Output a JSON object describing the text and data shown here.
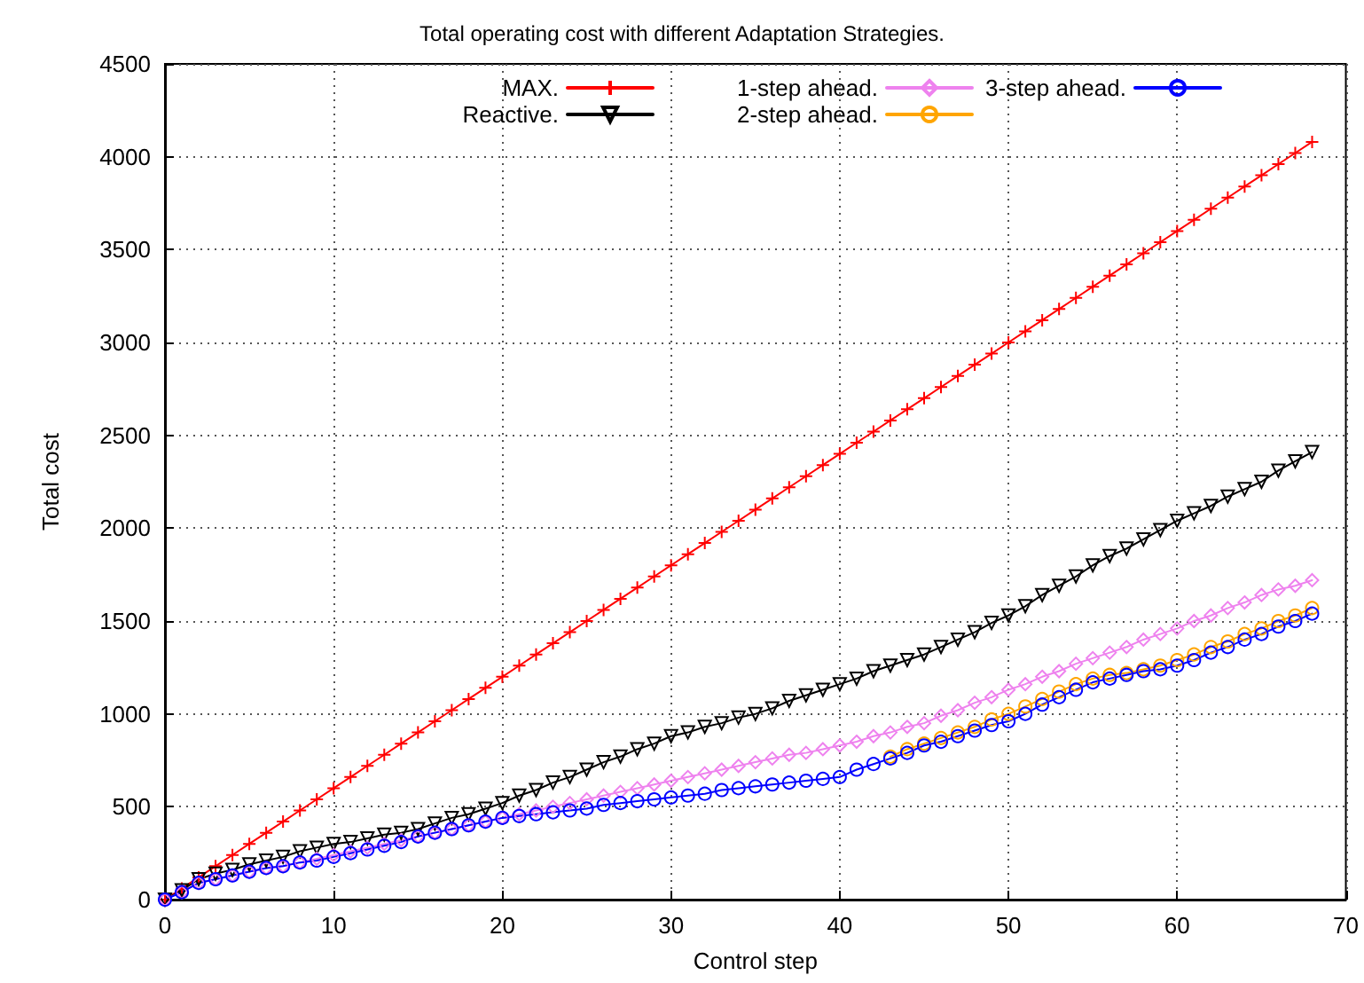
{
  "chart_data": {
    "type": "line",
    "title": "Total operating cost with different Adaptation Strategies.",
    "xlabel": "Control step",
    "ylabel": "Total cost",
    "x": [
      0,
      1,
      2,
      3,
      4,
      5,
      6,
      7,
      8,
      9,
      10,
      11,
      12,
      13,
      14,
      15,
      16,
      17,
      18,
      19,
      20,
      21,
      22,
      23,
      24,
      25,
      26,
      27,
      28,
      29,
      30,
      31,
      32,
      33,
      34,
      35,
      36,
      37,
      38,
      39,
      40,
      41,
      42,
      43,
      44,
      45,
      46,
      47,
      48,
      49,
      50,
      51,
      52,
      53,
      54,
      55,
      56,
      57,
      58,
      59,
      60,
      61,
      62,
      63,
      64,
      65,
      66,
      67,
      68
    ],
    "xlim": [
      0,
      70
    ],
    "xticks": [
      0,
      10,
      20,
      30,
      40,
      50,
      60,
      70
    ],
    "ylim": [
      0,
      4500
    ],
    "yticks": [
      0,
      500,
      1000,
      1500,
      2000,
      2500,
      3000,
      3500,
      4000,
      4500
    ],
    "grid": true,
    "legend": "top right",
    "line_style": "solid",
    "series": [
      {
        "name": "MAX.",
        "color": "#ff0000",
        "marker": "cross",
        "values": [
          0,
          60,
          120,
          180,
          240,
          300,
          360,
          420,
          480,
          540,
          600,
          660,
          720,
          780,
          840,
          900,
          960,
          1020,
          1080,
          1140,
          1200,
          1260,
          1320,
          1380,
          1440,
          1500,
          1560,
          1620,
          1680,
          1740,
          1800,
          1860,
          1920,
          1980,
          2040,
          2100,
          2160,
          2220,
          2280,
          2340,
          2400,
          2460,
          2520,
          2580,
          2640,
          2700,
          2760,
          2820,
          2880,
          2940,
          3000,
          3060,
          3120,
          3180,
          3240,
          3300,
          3360,
          3420,
          3480,
          3540,
          3600,
          3660,
          3720,
          3780,
          3840,
          3900,
          3960,
          4020,
          4080
        ]
      },
      {
        "name": "Reactive.",
        "color": "#000000",
        "marker": "triangle",
        "values": [
          0,
          50,
          110,
          140,
          160,
          190,
          210,
          230,
          260,
          280,
          300,
          310,
          330,
          350,
          360,
          380,
          410,
          440,
          460,
          490,
          520,
          560,
          590,
          630,
          660,
          700,
          740,
          770,
          810,
          840,
          880,
          900,
          930,
          950,
          980,
          1000,
          1030,
          1070,
          1100,
          1130,
          1160,
          1190,
          1230,
          1260,
          1290,
          1320,
          1360,
          1400,
          1440,
          1490,
          1530,
          1580,
          1640,
          1690,
          1740,
          1800,
          1850,
          1890,
          1940,
          1990,
          2040,
          2080,
          2120,
          2170,
          2210,
          2250,
          2310,
          2360,
          2410
        ]
      },
      {
        "name": "1-step ahead.",
        "color": "#ee82ee",
        "marker": "diamond",
        "values": [
          0,
          40,
          90,
          110,
          130,
          150,
          170,
          180,
          200,
          220,
          240,
          260,
          280,
          300,
          320,
          340,
          360,
          380,
          400,
          420,
          440,
          460,
          480,
          500,
          520,
          540,
          560,
          580,
          600,
          620,
          640,
          660,
          680,
          700,
          720,
          740,
          760,
          780,
          790,
          810,
          830,
          850,
          880,
          900,
          930,
          950,
          990,
          1020,
          1060,
          1090,
          1130,
          1160,
          1200,
          1230,
          1270,
          1300,
          1330,
          1360,
          1400,
          1430,
          1460,
          1500,
          1530,
          1570,
          1600,
          1640,
          1670,
          1690,
          1720
        ]
      },
      {
        "name": "2-step ahead.",
        "color": "#ffa500",
        "marker": "circle",
        "values": [
          null,
          null,
          null,
          null,
          null,
          null,
          null,
          null,
          null,
          null,
          null,
          null,
          null,
          null,
          null,
          null,
          null,
          null,
          null,
          null,
          null,
          null,
          null,
          null,
          null,
          null,
          null,
          null,
          null,
          null,
          null,
          null,
          null,
          null,
          null,
          null,
          null,
          null,
          null,
          null,
          null,
          null,
          null,
          770,
          810,
          840,
          870,
          900,
          930,
          970,
          1000,
          1040,
          1080,
          1120,
          1160,
          1190,
          1210,
          1220,
          1240,
          1260,
          1290,
          1320,
          1360,
          1390,
          1430,
          1460,
          1500,
          1530,
          1570
        ]
      },
      {
        "name": "3-step ahead.",
        "color": "#0000ff",
        "marker": "circle",
        "values": [
          0,
          40,
          90,
          110,
          130,
          150,
          170,
          180,
          200,
          210,
          230,
          250,
          270,
          290,
          310,
          340,
          360,
          380,
          400,
          420,
          440,
          450,
          460,
          470,
          480,
          490,
          510,
          520,
          530,
          540,
          550,
          560,
          570,
          590,
          600,
          610,
          620,
          630,
          640,
          650,
          660,
          700,
          730,
          760,
          790,
          830,
          850,
          880,
          910,
          940,
          960,
          1000,
          1050,
          1090,
          1130,
          1170,
          1190,
          1210,
          1230,
          1240,
          1260,
          1290,
          1330,
          1360,
          1400,
          1430,
          1470,
          1500,
          1540
        ]
      }
    ]
  }
}
